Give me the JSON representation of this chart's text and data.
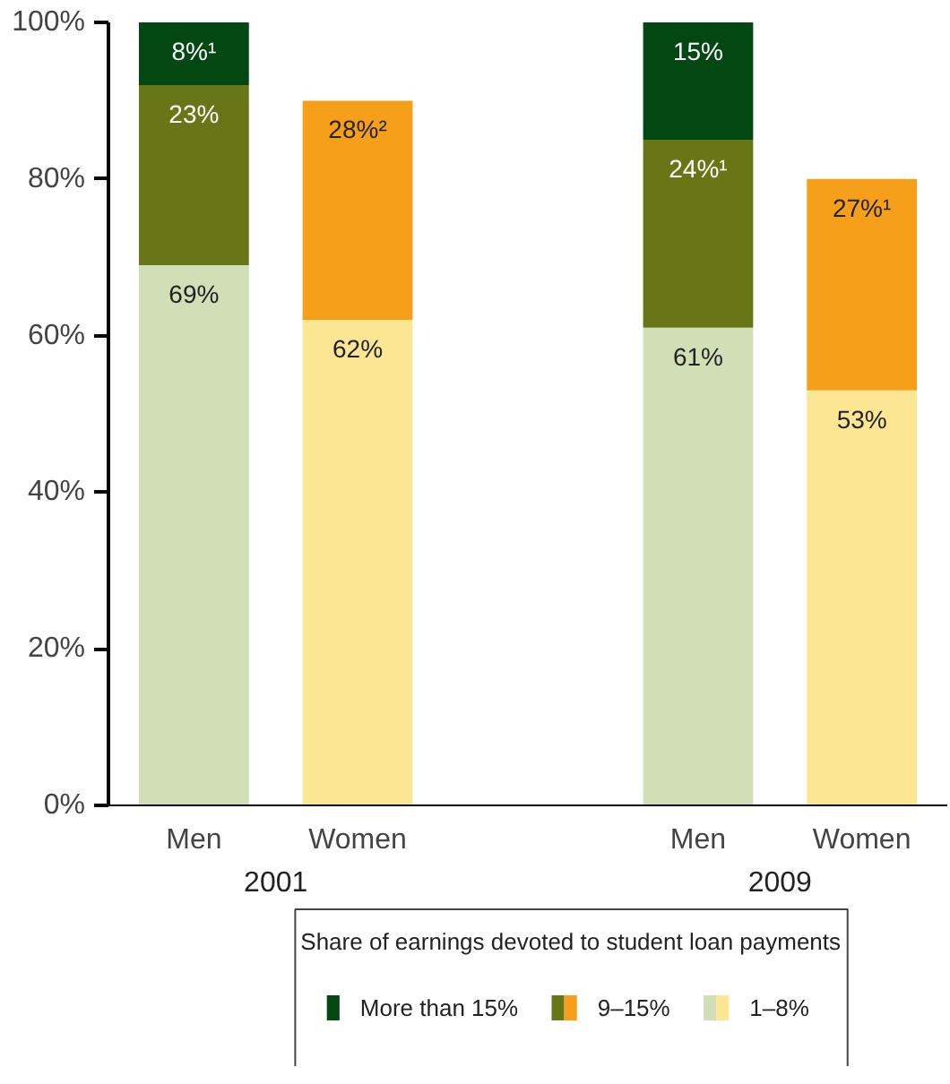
{
  "chart_data": {
    "type": "bar",
    "stacked": true,
    "categories": [
      "Men",
      "Women",
      "Men",
      "Women"
    ],
    "annotations": [
      "2001",
      "2009"
    ],
    "legend_title": "Share of earnings devoted to student loan payments",
    "legend": "bottom",
    "ylim": [
      0,
      100
    ],
    "yticks": [
      {
        "value": 0,
        "label": "0%"
      },
      {
        "value": 20,
        "label": "20%"
      },
      {
        "value": 40,
        "label": "40%"
      },
      {
        "value": 60,
        "label": "60%"
      },
      {
        "value": 80,
        "label": "80%"
      },
      {
        "value": 100,
        "label": "100%"
      }
    ],
    "grid": false,
    "series": [
      {
        "name": "1–8%",
        "colors": [
          "#d0dfb5",
          "#fde693",
          "#d0dfb5",
          "#fde693"
        ],
        "values": [
          69,
          62,
          61,
          53
        ],
        "value_labels": [
          "69%",
          "62%",
          "61%",
          "53%"
        ]
      },
      {
        "name": "9–15%",
        "colors": [
          "#687618",
          "#f59f1b",
          "#687618",
          "#f59f1b"
        ],
        "values": [
          23,
          28,
          24,
          27
        ],
        "value_labels": [
          "23%",
          "28%²",
          "24%¹",
          "27%¹"
        ]
      },
      {
        "name": "More than 15%",
        "colors": [
          "#034712",
          null,
          "#034712",
          null
        ],
        "values": [
          8,
          null,
          15,
          null
        ],
        "value_labels": [
          "8%¹",
          null,
          "15%",
          null
        ]
      }
    ]
  }
}
